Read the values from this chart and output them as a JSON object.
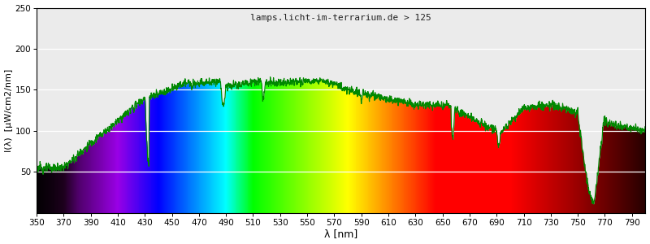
{
  "title": "lamps.licht-im-terrarium.de > 125",
  "xlabel": "λ [nm]",
  "ylabel": "I(λ)  [µW/cm2/nm]",
  "xlim": [
    350,
    800
  ],
  "ylim": [
    0,
    250
  ],
  "yticks": [
    50,
    100,
    150,
    200,
    250
  ],
  "xticks": [
    350,
    370,
    390,
    410,
    430,
    450,
    470,
    490,
    510,
    530,
    550,
    570,
    590,
    610,
    630,
    650,
    670,
    690,
    710,
    730,
    750,
    770,
    790
  ],
  "background_color": "#ebebeb",
  "line_color": "#008800",
  "grid_color": "#ffffff",
  "title_fontsize": 8,
  "axis_fontsize": 8
}
